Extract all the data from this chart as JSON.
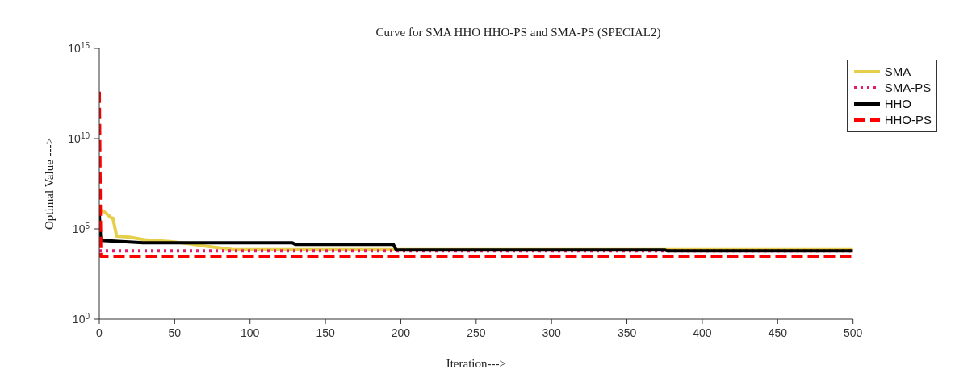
{
  "chart_data": {
    "type": "line",
    "title": "Curve for SMA HHO HHO-PS and SMA-PS (SPECIAL2)",
    "xlabel": "Iteration--->",
    "ylabel": "Optimal Value --->",
    "xlim": [
      0,
      500
    ],
    "xticks": [
      0,
      50,
      100,
      150,
      200,
      250,
      300,
      350,
      400,
      450,
      500
    ],
    "ylim": [
      1,
      1000000000000000.0
    ],
    "yticks": [
      {
        "value": 1,
        "label": "10$^{0}$"
      },
      {
        "value": 100000,
        "label": "10$^{5}$"
      },
      {
        "value": 10000000000,
        "label": "10$^{10}$"
      },
      {
        "value": 1000000000000000.0,
        "label": "10$^{15}$"
      }
    ],
    "log": "y",
    "grid": false,
    "legend": "top right",
    "marker": "none",
    "series": [
      {
        "name": "SMA",
        "color": "#e6cf4a",
        "line_style": "solid",
        "x": [
          0,
          2,
          4,
          8,
          9,
          11.5,
          12,
          20,
          30,
          47,
          60,
          71,
          90,
          500
        ],
        "values": [
          1000000,
          1000000,
          800000,
          400000,
          400000,
          40000,
          40000,
          35000,
          25000,
          20000,
          15000,
          11000,
          7000,
          7000
        ]
      },
      {
        "name": "SMA-PS",
        "color": "#e8186b",
        "line_style": "dotted",
        "x": [
          0,
          500
        ],
        "values": [
          6000,
          6000
        ]
      },
      {
        "name": "HHO",
        "color": "#000000",
        "line_style": "solid",
        "x": [
          0,
          1,
          29,
          128,
          130,
          195,
          197,
          375,
          377,
          500
        ],
        "values": [
          600000,
          23000,
          17000,
          17000,
          14000,
          14000,
          6800,
          6800,
          6000,
          6000
        ]
      },
      {
        "name": "HHO-PS",
        "color": "#ff0000",
        "line_style": "dashed",
        "x": [
          0,
          1,
          500
        ],
        "values": [
          4000000000000,
          3000,
          3000
        ]
      }
    ]
  }
}
